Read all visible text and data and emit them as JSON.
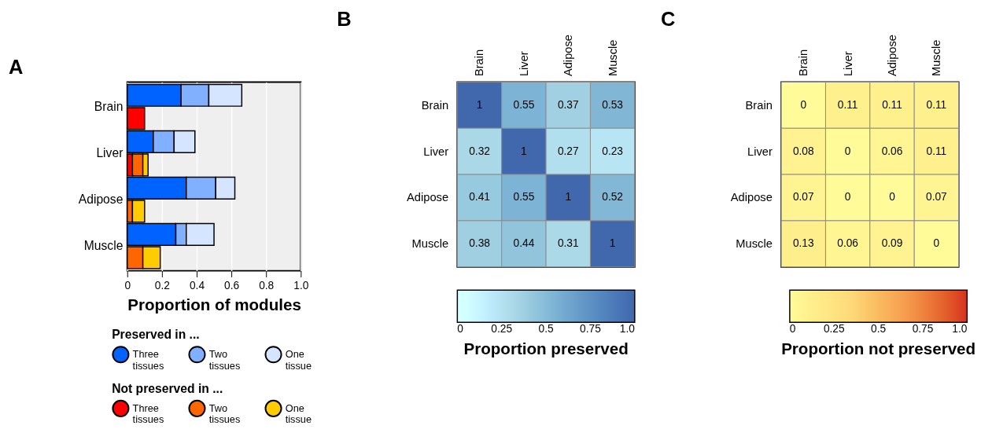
{
  "chart_data": [
    {
      "type": "bar",
      "title": "A",
      "orientation": "horizontal",
      "stacked": true,
      "categories": [
        "Brain",
        null,
        "Liver",
        null,
        "Adipose",
        null,
        "Muscle",
        null
      ],
      "xlabel": "Proportion of modules",
      "xlim": [
        0,
        1
      ],
      "xticks": [
        0,
        0.2,
        0.4,
        0.6,
        0.8,
        {
          "value": 1,
          "label": "1.0"
        }
      ],
      "grid": "x",
      "legend": "bottom",
      "legend_title": [
        "Preserved in ...",
        "Not preserved in ..."
      ],
      "series": [
        {
          "name": "Three tissues",
          "color": "#0062ff",
          "values": [
            0.31,
            null,
            0.15,
            null,
            0.34,
            null,
            0.28,
            null
          ]
        },
        {
          "name": "Two tissues",
          "color": "#80b0ff",
          "values": [
            0.16,
            null,
            0.12,
            null,
            0.17,
            null,
            0.06,
            null
          ]
        },
        {
          "name": "One tissue",
          "color": "#d5e4ff",
          "values": [
            0.19,
            null,
            0.12,
            null,
            0.11,
            null,
            0.16,
            null
          ]
        },
        {
          "name": "Three tissues",
          "color": "#ff0000",
          "values": [
            null,
            0.1,
            null,
            0.03,
            null,
            null,
            null,
            null
          ]
        },
        {
          "name": "Two tissues",
          "color": "#ff6600",
          "values": [
            null,
            null,
            null,
            0.06,
            null,
            0.03,
            null,
            0.09
          ]
        },
        {
          "name": "One tissue",
          "color": "#ffcc00",
          "values": [
            null,
            null,
            null,
            0.03,
            null,
            0.07,
            null,
            0.1
          ]
        }
      ]
    },
    {
      "type": "heatmap",
      "title": "B",
      "categories": [
        "Brain",
        "Liver",
        "Adipose",
        "Muscle"
      ],
      "y_categories": [
        "Brain",
        "Liver",
        "Adipose",
        "Muscle"
      ],
      "cells": [
        [
          1,
          0.55,
          0.37,
          0.53
        ],
        [
          0.32,
          1,
          0.27,
          0.23
        ],
        [
          0.41,
          0.55,
          1,
          0.52
        ],
        [
          0.38,
          0.44,
          0.31,
          1
        ]
      ],
      "data_labels": true,
      "clabel": "Proportion preserved",
      "clim": [
        0,
        1
      ],
      "cticks": [
        0,
        0.25,
        0.5,
        0.75,
        {
          "value": 1,
          "label": "1.0"
        }
      ]
    },
    {
      "type": "heatmap",
      "title": "C",
      "categories": [
        "Brain",
        "Liver",
        "Adipose",
        "Muscle"
      ],
      "y_categories": [
        "Brain",
        "Liver",
        "Adipose",
        "Muscle"
      ],
      "cells": [
        [
          0,
          0.11,
          0.11,
          0.11
        ],
        [
          0.08,
          0,
          0.06,
          0.11
        ],
        [
          0.07,
          0,
          0,
          0.07
        ],
        [
          0.13,
          0.06,
          0.09,
          0
        ]
      ],
      "data_labels": true,
      "clabel": "Proportion not preserved",
      "clim": [
        0,
        1
      ],
      "cticks": [
        0,
        0.25,
        0.5,
        0.75,
        {
          "value": 1,
          "label": "1.0"
        }
      ]
    }
  ]
}
